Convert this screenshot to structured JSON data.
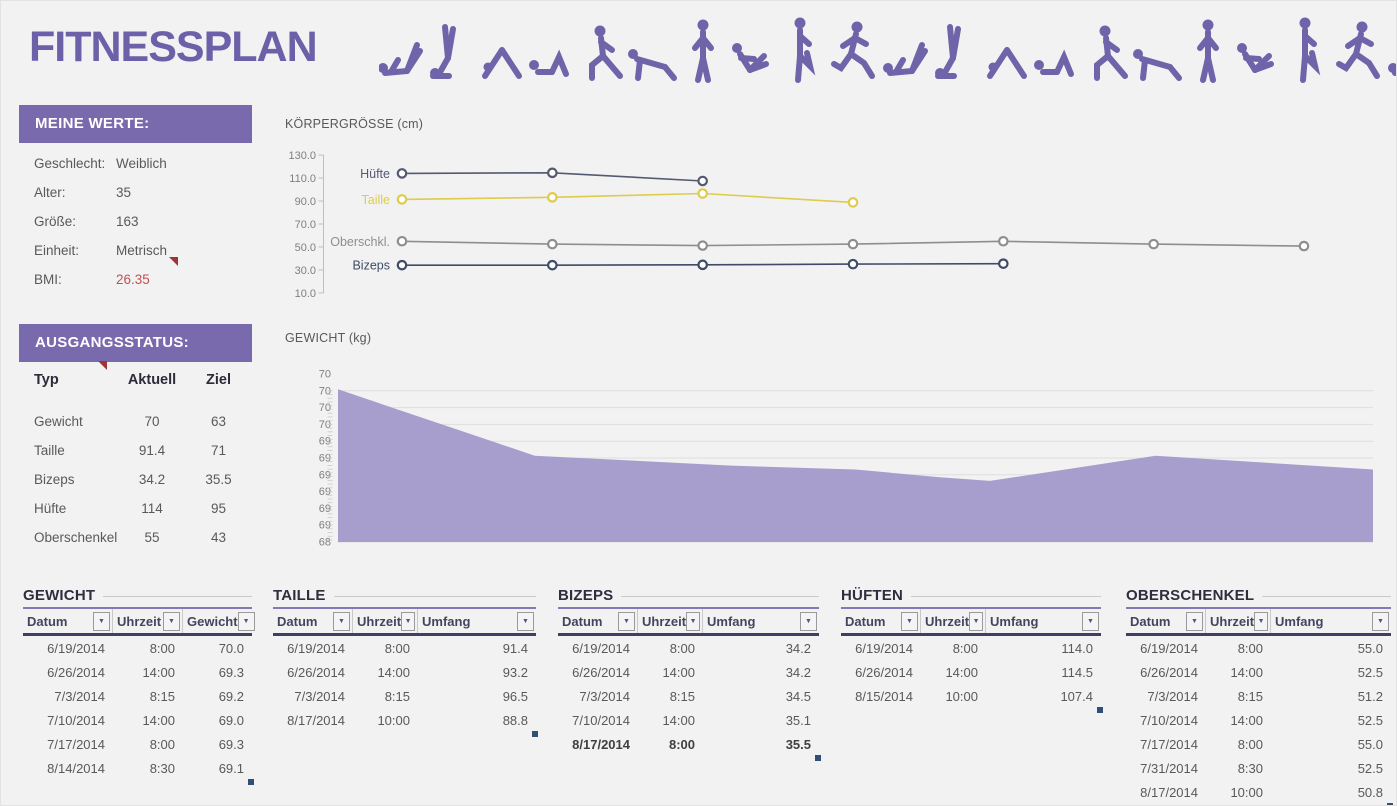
{
  "app": {
    "title": "FITNESSPLAN"
  },
  "meine_werte": {
    "header": "MEINE WERTE:",
    "rows": [
      {
        "label": "Geschlecht:",
        "value": "Weiblich",
        "red": false,
        "comment": false
      },
      {
        "label": "Alter:",
        "value": "35",
        "red": false,
        "comment": false
      },
      {
        "label": "Größe:",
        "value": "163",
        "red": false,
        "comment": false
      },
      {
        "label": "Einheit:",
        "value": "Metrisch",
        "red": false,
        "comment": true
      },
      {
        "label": "BMI:",
        "value": "26.35",
        "red": true,
        "comment": false
      }
    ]
  },
  "ausgangsstatus": {
    "header": "AUSGANGSSTATUS:",
    "columns": [
      "Typ",
      "Aktuell",
      "Ziel"
    ],
    "rows": [
      [
        "Gewicht",
        "70",
        "63"
      ],
      [
        "Taille",
        "91.4",
        "71"
      ],
      [
        "Bizeps",
        "34.2",
        "35.5"
      ],
      [
        "Hüfte",
        "114",
        "95"
      ],
      [
        "Oberschenkel",
        "55",
        "43"
      ]
    ]
  },
  "chart_data": [
    {
      "type": "line",
      "title": "KÖRPERGRÖSSE (cm)",
      "ylim": [
        10,
        130
      ],
      "yticks": [
        130.0,
        110.0,
        90.0,
        70.0,
        50.0,
        30.0,
        10.0
      ],
      "grid": false,
      "legend_position": "left-of-first-point",
      "series": [
        {
          "name": "Hüfte",
          "color": "#555a70",
          "values": [
            114.0,
            114.5,
            107.4
          ]
        },
        {
          "name": "Taille",
          "color": "#ddcc4e",
          "values": [
            91.4,
            93.2,
            96.5,
            88.8
          ]
        },
        {
          "name": "Oberschkl.",
          "color": "#8e8e8e",
          "values": [
            55.0,
            52.5,
            51.2,
            52.5,
            55.0,
            52.5,
            50.8
          ]
        },
        {
          "name": "Bizeps",
          "color": "#3f4c68",
          "values": [
            34.2,
            34.2,
            34.5,
            35.1,
            35.5
          ]
        }
      ]
    },
    {
      "type": "area",
      "title": "GEWICHT (kg)",
      "ylim": [
        68,
        70.2
      ],
      "ytick_labels": [
        "70",
        "70",
        "70",
        "70",
        "69",
        "69",
        "69",
        "69",
        "69",
        "69",
        "68"
      ],
      "fill_color": "#a79ecd",
      "grid": true,
      "profile_percent_value": [
        [
          0,
          70.0
        ],
        [
          19,
          69.13
        ],
        [
          38,
          69.0
        ],
        [
          50,
          68.95
        ],
        [
          58,
          68.85
        ],
        [
          63,
          68.8
        ],
        [
          79,
          69.13
        ],
        [
          100,
          68.95
        ]
      ]
    }
  ],
  "measurement_tables": [
    {
      "title": "GEWICHT",
      "columns": [
        "Datum",
        "Uhrzeit",
        "Gewicht"
      ],
      "bold_last_row": false,
      "rows": [
        [
          "6/19/2014",
          "8:00",
          "70.0"
        ],
        [
          "6/26/2014",
          "14:00",
          "69.3"
        ],
        [
          "7/3/2014",
          "8:15",
          "69.2"
        ],
        [
          "7/10/2014",
          "14:00",
          "69.0"
        ],
        [
          "7/17/2014",
          "8:00",
          "69.3"
        ],
        [
          "8/14/2014",
          "8:30",
          "69.1"
        ]
      ]
    },
    {
      "title": "TAILLE",
      "columns": [
        "Datum",
        "Uhrzeit",
        "Umfang"
      ],
      "bold_last_row": false,
      "rows": [
        [
          "6/19/2014",
          "8:00",
          "91.4"
        ],
        [
          "6/26/2014",
          "14:00",
          "93.2"
        ],
        [
          "7/3/2014",
          "8:15",
          "96.5"
        ],
        [
          "8/17/2014",
          "10:00",
          "88.8"
        ]
      ]
    },
    {
      "title": "BIZEPS",
      "columns": [
        "Datum",
        "Uhrzeit",
        "Umfang"
      ],
      "bold_last_row": true,
      "rows": [
        [
          "6/19/2014",
          "8:00",
          "34.2"
        ],
        [
          "6/26/2014",
          "14:00",
          "34.2"
        ],
        [
          "7/3/2014",
          "8:15",
          "34.5"
        ],
        [
          "7/10/2014",
          "14:00",
          "35.1"
        ],
        [
          "8/17/2014",
          "8:00",
          "35.5"
        ]
      ]
    },
    {
      "title": "HÜFTEN",
      "columns": [
        "Datum",
        "Uhrzeit",
        "Umfang"
      ],
      "bold_last_row": false,
      "rows": [
        [
          "6/19/2014",
          "8:00",
          "114.0"
        ],
        [
          "6/26/2014",
          "14:00",
          "114.5"
        ],
        [
          "8/15/2014",
          "10:00",
          "107.4"
        ]
      ]
    },
    {
      "title": "OBERSCHENKEL",
      "columns": [
        "Datum",
        "Uhrzeit",
        "Umfang"
      ],
      "bold_last_row": false,
      "rows": [
        [
          "6/19/2014",
          "8:00",
          "55.0"
        ],
        [
          "6/26/2014",
          "14:00",
          "52.5"
        ],
        [
          "7/3/2014",
          "8:15",
          "51.2"
        ],
        [
          "7/10/2014",
          "14:00",
          "52.5"
        ],
        [
          "7/17/2014",
          "8:00",
          "55.0"
        ],
        [
          "7/31/2014",
          "8:30",
          "52.5"
        ],
        [
          "8/17/2014",
          "10:00",
          "50.8"
        ]
      ]
    }
  ],
  "icons": {
    "filter_dropdown": "▼"
  },
  "colors": {
    "accent_purple": "#7969ad",
    "title_purple": "#6c60a8",
    "silhouette_purple": "#6f64a9",
    "area_fill": "#a79ecd",
    "alert_red": "#c0504d",
    "comment_red": "#9e3434",
    "text_gray": "#595959"
  }
}
